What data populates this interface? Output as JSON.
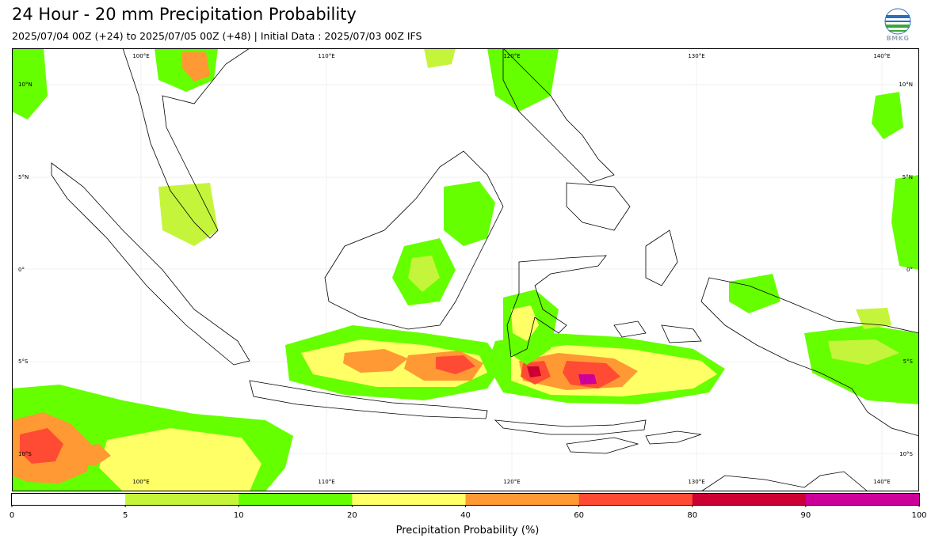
{
  "header": {
    "title": "24 Hour - 20 mm Precipitation Probability",
    "subtitle": "2025/07/04 00Z (+24) to 2025/07/05 00Z (+48) | Initial Data : 2025/07/03 00Z IFS"
  },
  "logo": {
    "text": "BMKG",
    "icon": "bmkg-logo-icon"
  },
  "map": {
    "lon_labels": [
      "100°E",
      "110°E",
      "120°E",
      "130°E",
      "140°E"
    ],
    "lat_labels_left": [
      "10°N",
      "5°N",
      "0°",
      "5°S",
      "10°S"
    ],
    "lat_labels_right": [
      "10°N",
      "5°N",
      "0°",
      "5°S",
      "10°S"
    ]
  },
  "colorbar": {
    "levels": [
      "0",
      "5",
      "10",
      "20",
      "40",
      "60",
      "80",
      "90",
      "100"
    ],
    "colors": [
      "#ffffff",
      "#c5f53a",
      "#66ff00",
      "#ffff66",
      "#ff9933",
      "#ff4b33",
      "#cc0033",
      "#cc0099"
    ],
    "label": "Precipitation Probability (%)"
  }
}
